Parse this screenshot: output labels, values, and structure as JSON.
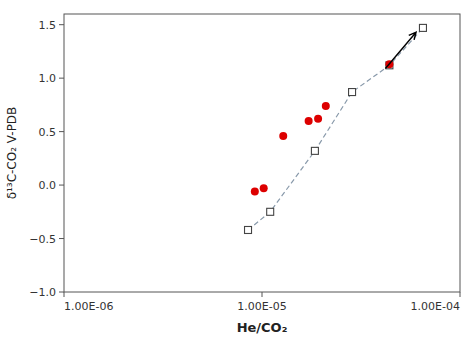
{
  "chart_data": {
    "type": "scatter",
    "title": "",
    "xlabel": "He/CO₂",
    "ylabel": "δ¹³C-CO₂ V-PDB",
    "log": "x",
    "grid": false,
    "xlim": [
      1e-06,
      0.0001
    ],
    "ylim": [
      -1,
      1.6
    ],
    "xticks": [
      {
        "value": 1e-06,
        "label": "1.00E-06"
      },
      {
        "value": 1e-05,
        "label": "1.00E-05"
      },
      {
        "value": 0.0001,
        "label": "1.00E-04"
      }
    ],
    "yticks": [
      {
        "value": -1,
        "label": "−1.0"
      },
      {
        "value": -0.5,
        "label": "−0.5"
      },
      {
        "value": 0,
        "label": "0.0"
      },
      {
        "value": 0.5,
        "label": "0.5"
      },
      {
        "value": 1.0,
        "label": "1.0"
      },
      {
        "value": 1.5,
        "label": "1.5"
      }
    ],
    "series": [
      {
        "type": "line",
        "color": "#8899aa",
        "marker": "square",
        "line_style": "dashed",
        "x": [
          8.5e-06,
          1.1e-05,
          1.85e-05,
          2.85e-05,
          4.4e-05,
          6.5e-05
        ],
        "values": [
          -0.42,
          -0.25,
          0.32,
          0.87,
          1.12,
          1.47
        ]
      },
      {
        "type": "scatter",
        "color": "#dd0000",
        "marker": "circle",
        "x": [
          9.2e-06,
          1.02e-05,
          1.28e-05,
          1.72e-05,
          1.92e-05,
          2.1e-05,
          4.4e-05
        ],
        "values": [
          -0.06,
          -0.03,
          0.46,
          0.6,
          0.62,
          0.74,
          1.13
        ]
      }
    ],
    "annotations": [
      {
        "x": 4.2e-05,
        "y": 1.09,
        "x_end": 6e-05,
        "y_end": 1.43
      }
    ]
  }
}
